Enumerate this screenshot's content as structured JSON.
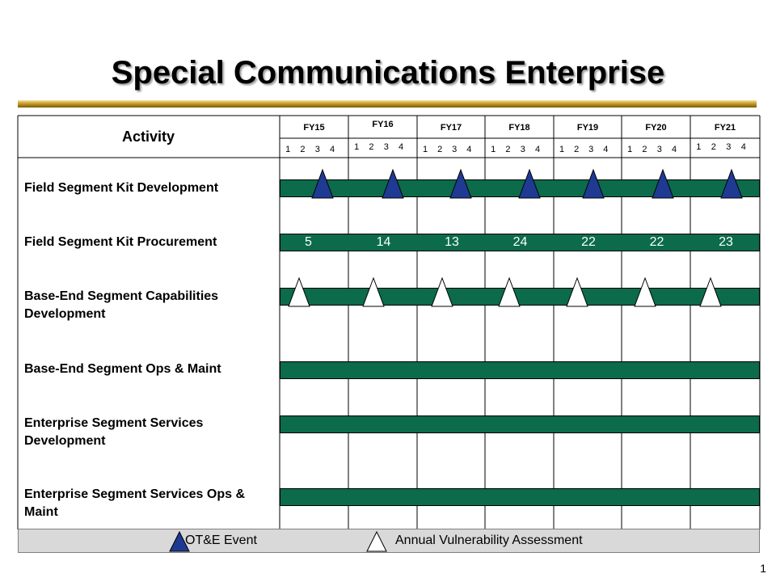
{
  "title": "Special Communications Enterprise",
  "activity_header": "Activity",
  "fiscal_years": [
    "FY15",
    "FY16",
    "FY17",
    "FY18",
    "FY19",
    "FY20",
    "FY21"
  ],
  "quarters": [
    "1",
    "2",
    "3",
    "4"
  ],
  "activities": [
    {
      "label": "Field Segment Kit Development",
      "marker": "otne"
    },
    {
      "label": "Field Segment Kit Procurement",
      "values": [
        "5",
        "14",
        "13",
        "24",
        "22",
        "22",
        "23"
      ]
    },
    {
      "label": "Base-End Segment Capabilities Development",
      "marker": "vulnerability"
    },
    {
      "label": "Base-End Segment Ops & Maint"
    },
    {
      "label": "Enterprise Segment Services Development"
    },
    {
      "label": "Enterprise Segment Services Ops & Maint"
    }
  ],
  "legend": {
    "otne_label": "OT&E Event",
    "vulnerability_label": "Annual Vulnerability Assessment"
  },
  "page_number": "1",
  "colors": {
    "bar": "#0b6b4b",
    "otne_marker": "#1f3a93",
    "vulnerability_marker": "#ffffff",
    "legend_bg": "#d9d9d9"
  }
}
